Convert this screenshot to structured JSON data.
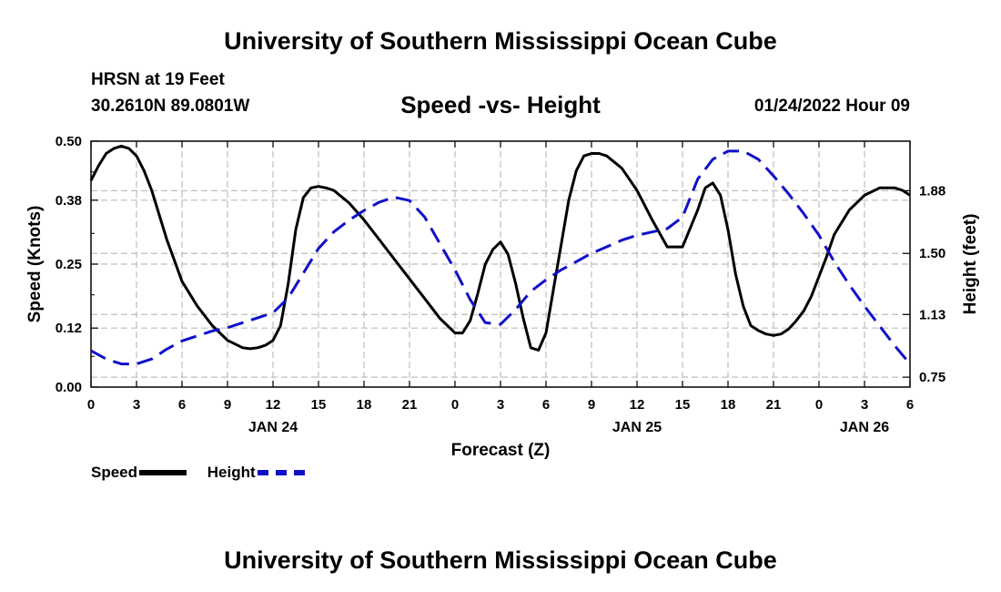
{
  "header": {
    "title": "University of Southern Mississippi Ocean Cube",
    "station": "HRSN at 19 Feet",
    "coords": "30.2610N  89.0801W",
    "chart_title": "Speed -vs- Height",
    "timestamp": "01/24/2022 Hour 09"
  },
  "footer": {
    "title": "University of Southern Mississippi Ocean Cube"
  },
  "legend": {
    "speed_label": "Speed",
    "height_label": "Height"
  },
  "colors": {
    "speed": "#000000",
    "height": "#1010c8",
    "grid": "#bdbdbd"
  },
  "chart_data": {
    "type": "line",
    "title": "Speed -vs- Height",
    "xlabel": "Forecast (Z)",
    "ylabel_left": "Speed (Knots)",
    "ylabel_right": "Height (feet)",
    "xlim": [
      0,
      54
    ],
    "x_tick_positions": [
      0,
      3,
      6,
      9,
      12,
      15,
      18,
      21,
      24,
      27,
      30,
      33,
      36,
      39,
      42,
      45,
      48,
      51,
      54
    ],
    "x_tick_labels": [
      "0",
      "3",
      "6",
      "9",
      "12",
      "15",
      "18",
      "21",
      "0",
      "3",
      "6",
      "9",
      "12",
      "15",
      "18",
      "21",
      "0",
      "3",
      "6"
    ],
    "date_labels": [
      {
        "x": 12,
        "label": "JAN 24"
      },
      {
        "x": 36,
        "label": "JAN 25"
      },
      {
        "x": 51,
        "label": "JAN 26"
      }
    ],
    "y_left": {
      "range": [
        0,
        0.5
      ],
      "ticks": [
        0.0,
        0.12,
        0.25,
        0.38,
        0.5
      ],
      "tick_labels": [
        "0.00",
        "0.12",
        "0.25",
        "0.38",
        "0.50"
      ]
    },
    "y_right": {
      "range": [
        0.69,
        2.18
      ],
      "ticks": [
        0.75,
        1.13,
        1.5,
        1.88
      ],
      "tick_labels": [
        "0.75",
        "1.13",
        "1.50",
        "1.88"
      ]
    },
    "series": [
      {
        "name": "Speed",
        "axis": "left",
        "style": "solid",
        "x": [
          0,
          0.5,
          1,
          1.5,
          2,
          2.5,
          3,
          3.5,
          4,
          5,
          6,
          7,
          8,
          9,
          10,
          10.5,
          11,
          11.5,
          12,
          12.5,
          13,
          13.5,
          14,
          14.5,
          15,
          15.5,
          16,
          17,
          18,
          19,
          20,
          21,
          22,
          23,
          24,
          24.5,
          25,
          25.5,
          26,
          26.5,
          27,
          27.5,
          28,
          28.5,
          29,
          29.5,
          30,
          30.5,
          31,
          31.5,
          32,
          32.5,
          33,
          33.5,
          34,
          35,
          36,
          37,
          38,
          39,
          40,
          40.5,
          41,
          41.5,
          42,
          42.5,
          43,
          43.5,
          44,
          44.5,
          45,
          45.5,
          46,
          46.5,
          47,
          47.5,
          48,
          48.5,
          49,
          50,
          51,
          52,
          53,
          53.5,
          54
        ],
        "values": [
          0.42,
          0.45,
          0.475,
          0.485,
          0.49,
          0.485,
          0.47,
          0.44,
          0.4,
          0.3,
          0.215,
          0.165,
          0.125,
          0.095,
          0.08,
          0.078,
          0.08,
          0.085,
          0.095,
          0.125,
          0.21,
          0.32,
          0.385,
          0.405,
          0.408,
          0.405,
          0.4,
          0.375,
          0.34,
          0.3,
          0.26,
          0.22,
          0.18,
          0.14,
          0.11,
          0.11,
          0.135,
          0.19,
          0.25,
          0.28,
          0.295,
          0.27,
          0.21,
          0.14,
          0.08,
          0.075,
          0.11,
          0.2,
          0.29,
          0.38,
          0.44,
          0.47,
          0.475,
          0.475,
          0.47,
          0.445,
          0.4,
          0.34,
          0.285,
          0.285,
          0.36,
          0.405,
          0.415,
          0.39,
          0.32,
          0.23,
          0.165,
          0.125,
          0.115,
          0.108,
          0.105,
          0.108,
          0.118,
          0.135,
          0.155,
          0.185,
          0.225,
          0.265,
          0.31,
          0.36,
          0.39,
          0.405,
          0.405,
          0.4,
          0.39
        ]
      },
      {
        "name": "Height",
        "axis": "right",
        "style": "dashed",
        "x": [
          0,
          1,
          2,
          3,
          4,
          5,
          6,
          7,
          8,
          9,
          10,
          11,
          12,
          13,
          14,
          15,
          16,
          17,
          18,
          19,
          20,
          21,
          22,
          23,
          24,
          25,
          26,
          27,
          28,
          29,
          30,
          31,
          32,
          33,
          34,
          35,
          36,
          37,
          38,
          39,
          40,
          41,
          42,
          43,
          44,
          45,
          46,
          47,
          48,
          49,
          50,
          51,
          52,
          53,
          54
        ],
        "values": [
          0.91,
          0.86,
          0.83,
          0.83,
          0.86,
          0.92,
          0.97,
          1.0,
          1.03,
          1.05,
          1.08,
          1.11,
          1.14,
          1.23,
          1.38,
          1.53,
          1.63,
          1.7,
          1.76,
          1.81,
          1.84,
          1.82,
          1.72,
          1.56,
          1.4,
          1.22,
          1.08,
          1.07,
          1.16,
          1.27,
          1.34,
          1.4,
          1.45,
          1.5,
          1.54,
          1.58,
          1.61,
          1.63,
          1.65,
          1.72,
          1.95,
          2.07,
          2.12,
          2.12,
          2.07,
          1.97,
          1.86,
          1.74,
          1.61,
          1.45,
          1.31,
          1.18,
          1.06,
          0.94,
          0.83
        ]
      }
    ]
  }
}
